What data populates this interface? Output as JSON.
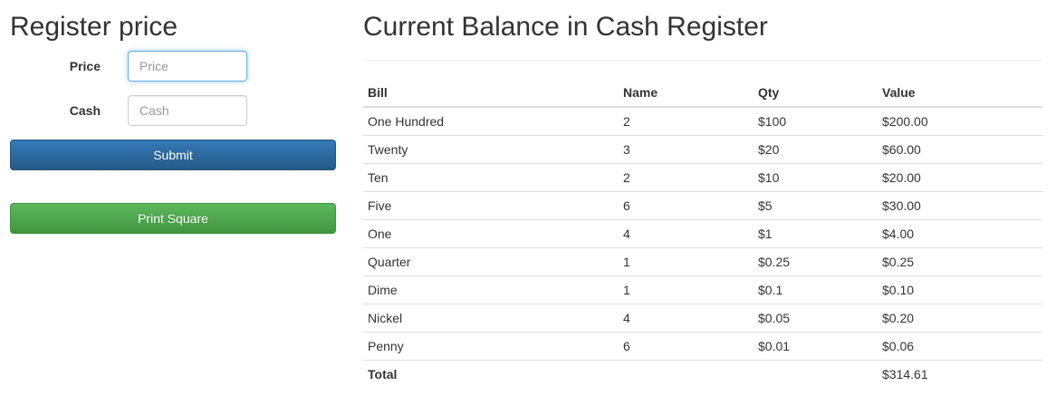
{
  "register": {
    "title": "Register price",
    "price_label": "Price",
    "price_value": "",
    "price_placeholder": "Price",
    "cash_label": "Cash",
    "cash_value": "",
    "cash_placeholder": "Cash",
    "submit_label": "Submit",
    "print_label": "Print Square"
  },
  "balance": {
    "title": "Current Balance in Cash Register",
    "headers": [
      "Bill",
      "Name",
      "Qty",
      "Value"
    ],
    "rows": [
      [
        "One Hundred",
        "2",
        "$100",
        "$200.00"
      ],
      [
        "Twenty",
        "3",
        "$20",
        "$60.00"
      ],
      [
        "Ten",
        "2",
        "$10",
        "$20.00"
      ],
      [
        "Five",
        "6",
        "$5",
        "$30.00"
      ],
      [
        "One",
        "4",
        "$1",
        "$4.00"
      ],
      [
        "Quarter",
        "1",
        "$0.25",
        "$0.25"
      ],
      [
        "Dime",
        "1",
        "$0.1",
        "$0.10"
      ],
      [
        "Nickel",
        "4",
        "$0.05",
        "$0.20"
      ],
      [
        "Penny",
        "6",
        "$0.01",
        "$0.06"
      ]
    ],
    "total_label": "Total",
    "total_value": "$314.61"
  },
  "colors": {
    "primary": "#337ab7",
    "success": "#5cb85c",
    "focus": "#66afe9"
  }
}
